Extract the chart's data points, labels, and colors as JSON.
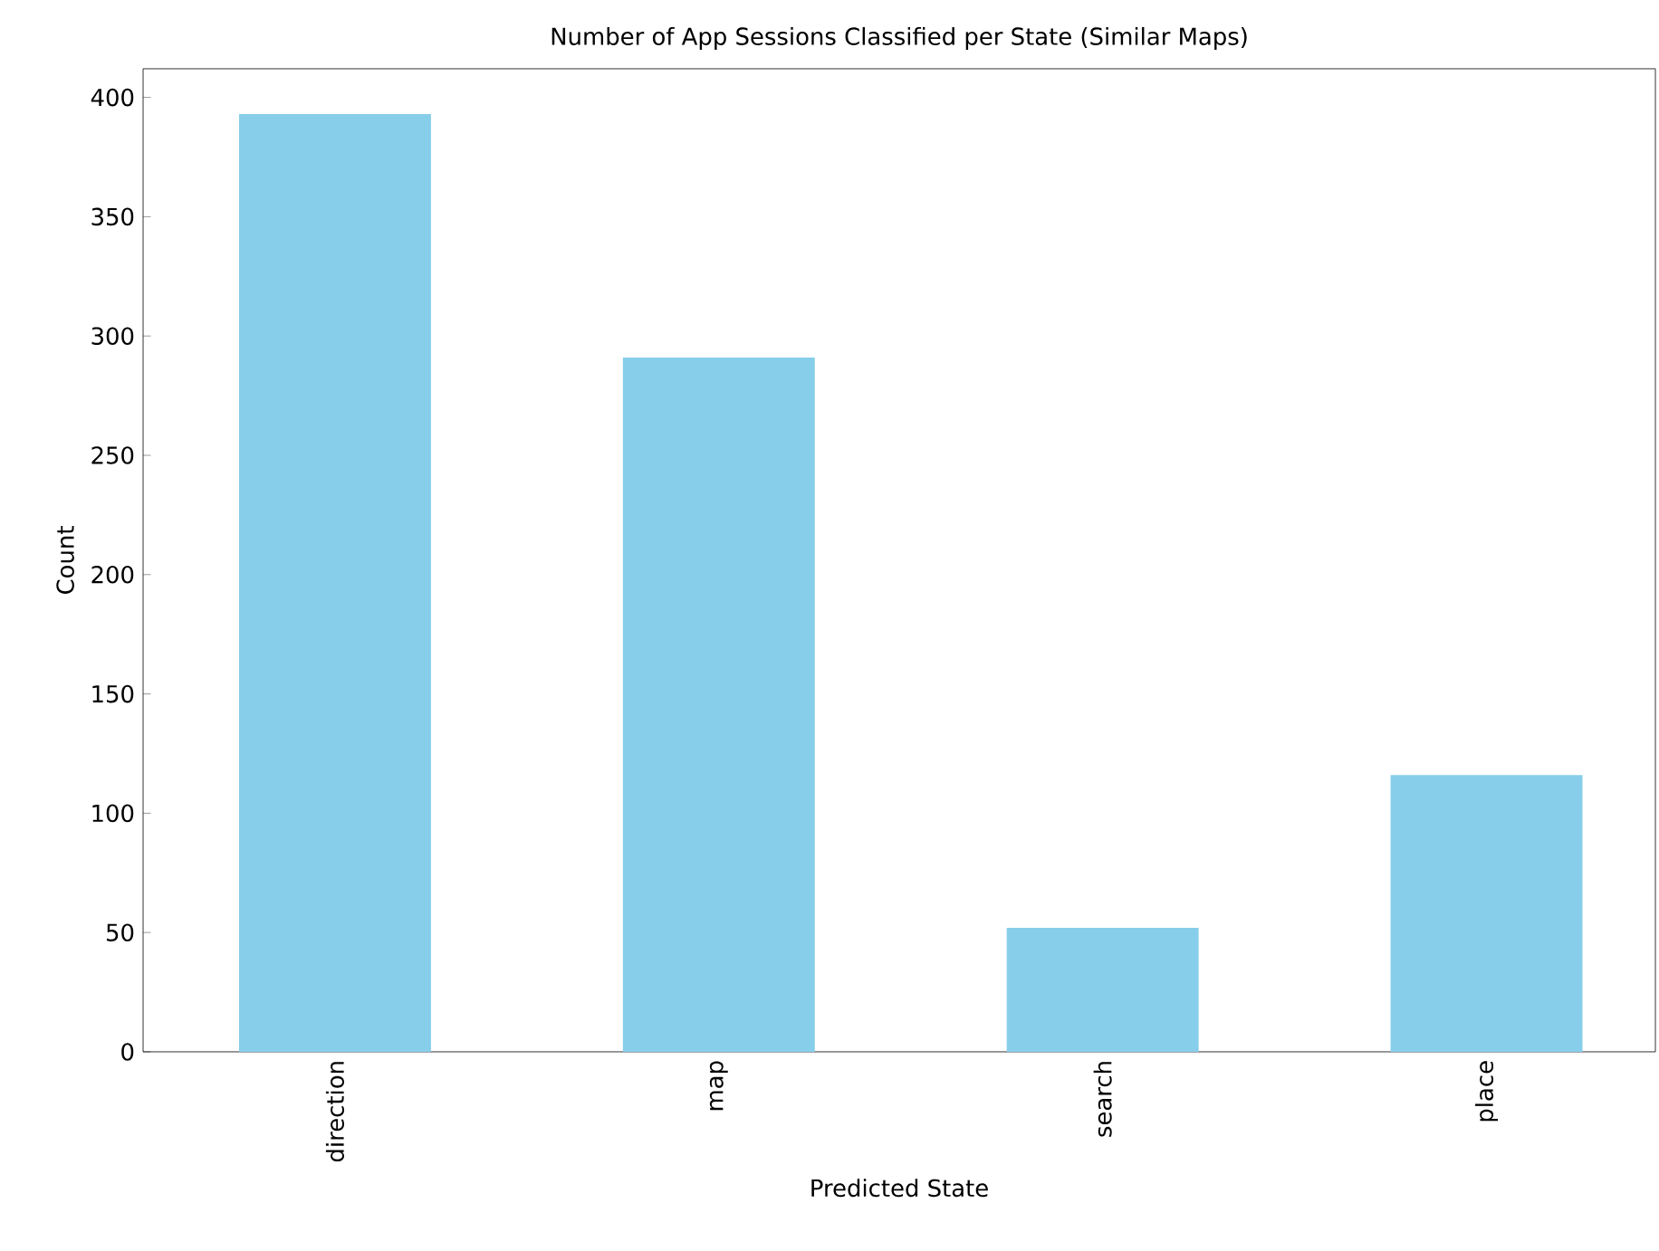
{
  "chart_data": {
    "type": "bar",
    "title": "Number of App Sessions Classified per State (Similar Maps)",
    "xlabel": "Predicted State",
    "ylabel": "Count",
    "categories": [
      "direction",
      "map",
      "search",
      "place"
    ],
    "values": [
      393,
      291,
      52,
      116
    ],
    "color": "#87ceeb",
    "ylim": [
      0,
      412
    ],
    "yticks": [
      0,
      50,
      100,
      150,
      200,
      250,
      300,
      350,
      400
    ]
  }
}
